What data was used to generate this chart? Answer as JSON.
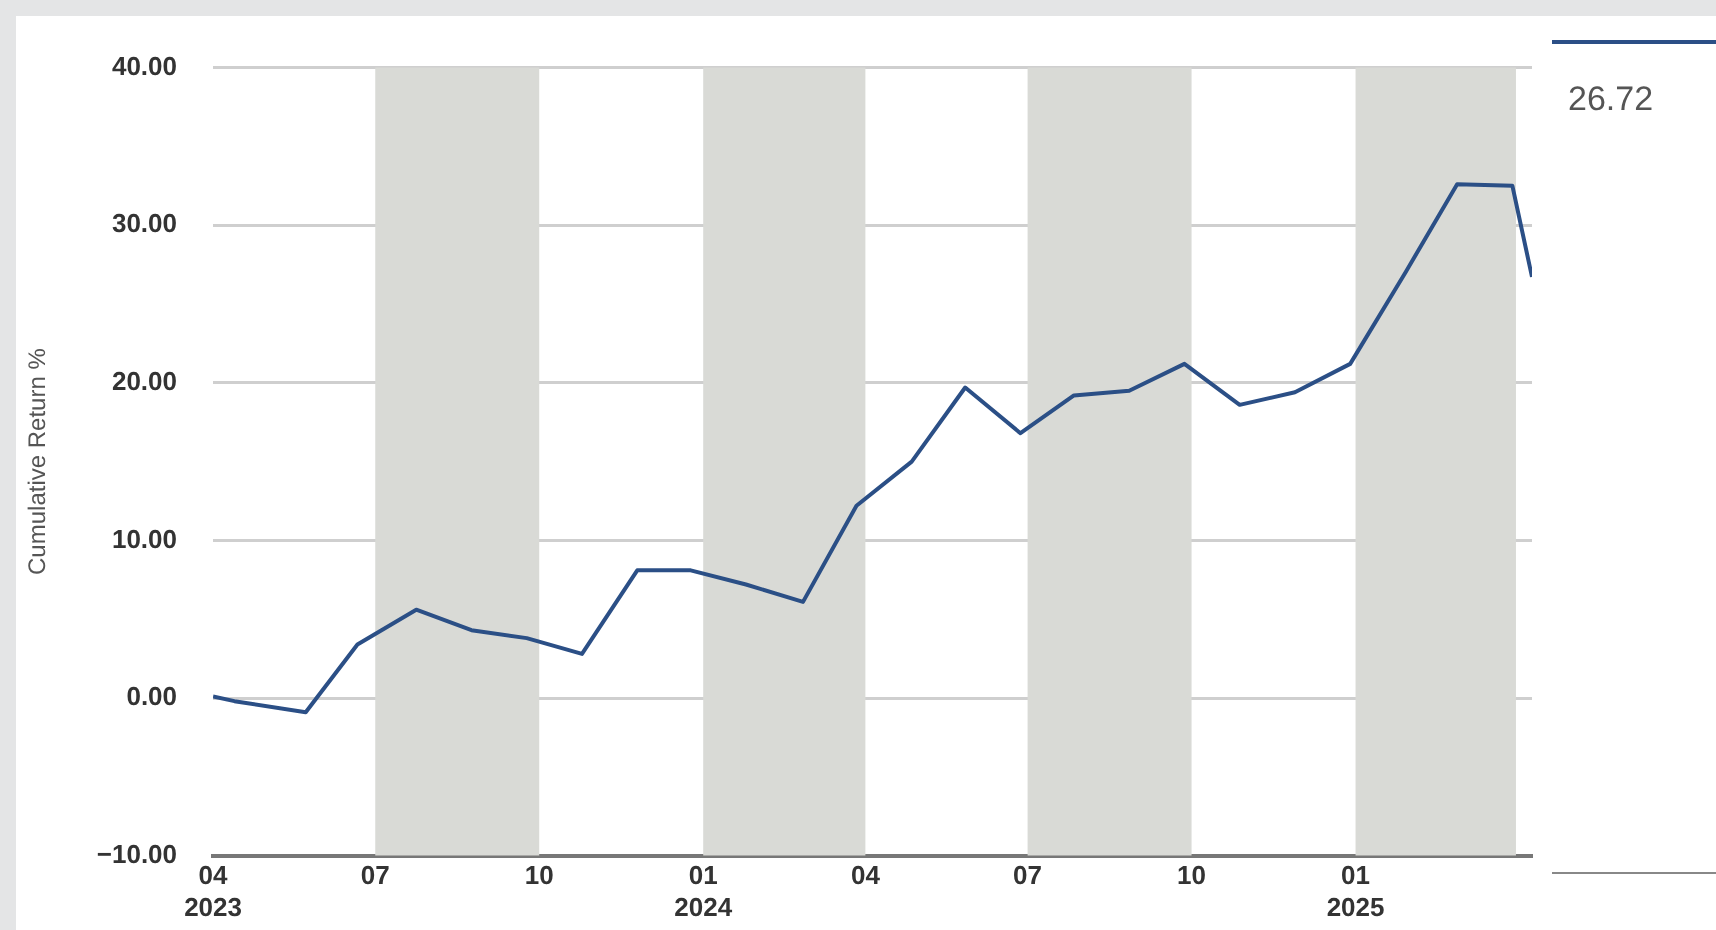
{
  "chart_data": {
    "type": "line",
    "ylabel": "Cumulative Return %",
    "x": [
      "2023-04-01",
      "2023-04-13",
      "2023-05-23",
      "2023-06-21",
      "2023-07-24",
      "2023-08-24",
      "2023-09-24",
      "2023-10-25",
      "2023-11-25",
      "2023-12-25",
      "2024-01-25",
      "2024-02-26",
      "2024-03-27",
      "2024-04-27",
      "2024-05-27",
      "2024-06-27",
      "2024-07-27",
      "2024-08-27",
      "2024-09-27",
      "2024-10-28",
      "2024-11-28",
      "2024-12-29",
      "2025-01-29",
      "2025-02-27",
      "2025-03-30",
      "2025-04-10"
    ],
    "series": [
      {
        "color": "#2b4f86",
        "values": [
          0.1,
          -0.2,
          -0.9,
          3.4,
          5.6,
          4.3,
          3.8,
          2.8,
          8.1,
          8.1,
          7.2,
          6.1,
          12.2,
          15.0,
          19.7,
          16.8,
          19.2,
          19.5,
          21.2,
          18.6,
          19.4,
          21.2,
          27.0,
          32.6,
          32.5,
          26.72
        ]
      }
    ],
    "xlim": [
      "2023-04-01",
      "2025-04-10"
    ],
    "xticks": [
      {
        "value": "2023-04-01",
        "label": "04\n2023"
      },
      {
        "value": "2023-07-01",
        "label": "07"
      },
      {
        "value": "2023-10-01",
        "label": "10"
      },
      {
        "value": "2024-01-01",
        "label": "01\n2024"
      },
      {
        "value": "2024-04-01",
        "label": "04"
      },
      {
        "value": "2024-07-01",
        "label": "07"
      },
      {
        "value": "2024-10-01",
        "label": "10"
      },
      {
        "value": "2025-01-01",
        "label": "01\n2025"
      }
    ],
    "ylim": [
      -10,
      40
    ],
    "yticks": [
      {
        "value": -10,
        "label": "−10.00"
      },
      {
        "value": 0,
        "label": "0.00"
      },
      {
        "value": 10,
        "label": "10.00"
      },
      {
        "value": 20,
        "label": "20.00"
      },
      {
        "value": 30,
        "label": "30.00"
      },
      {
        "value": 40,
        "label": "40.00"
      }
    ],
    "bands": [
      {
        "axis": "x",
        "from": "2023-07-01",
        "to": "2023-10-01",
        "color": "#d9dad6"
      },
      {
        "axis": "x",
        "from": "2024-01-01",
        "to": "2024-04-01",
        "color": "#d9dad6"
      },
      {
        "axis": "x",
        "from": "2024-07-01",
        "to": "2024-10-01",
        "color": "#d9dad6"
      },
      {
        "axis": "x",
        "from": "2025-01-01",
        "to": "2025-04-01",
        "color": "#d9dad6"
      }
    ],
    "annotations": [
      "26.72"
    ],
    "grid": "y",
    "marker": "none",
    "line_style": "solid",
    "legend": false
  }
}
